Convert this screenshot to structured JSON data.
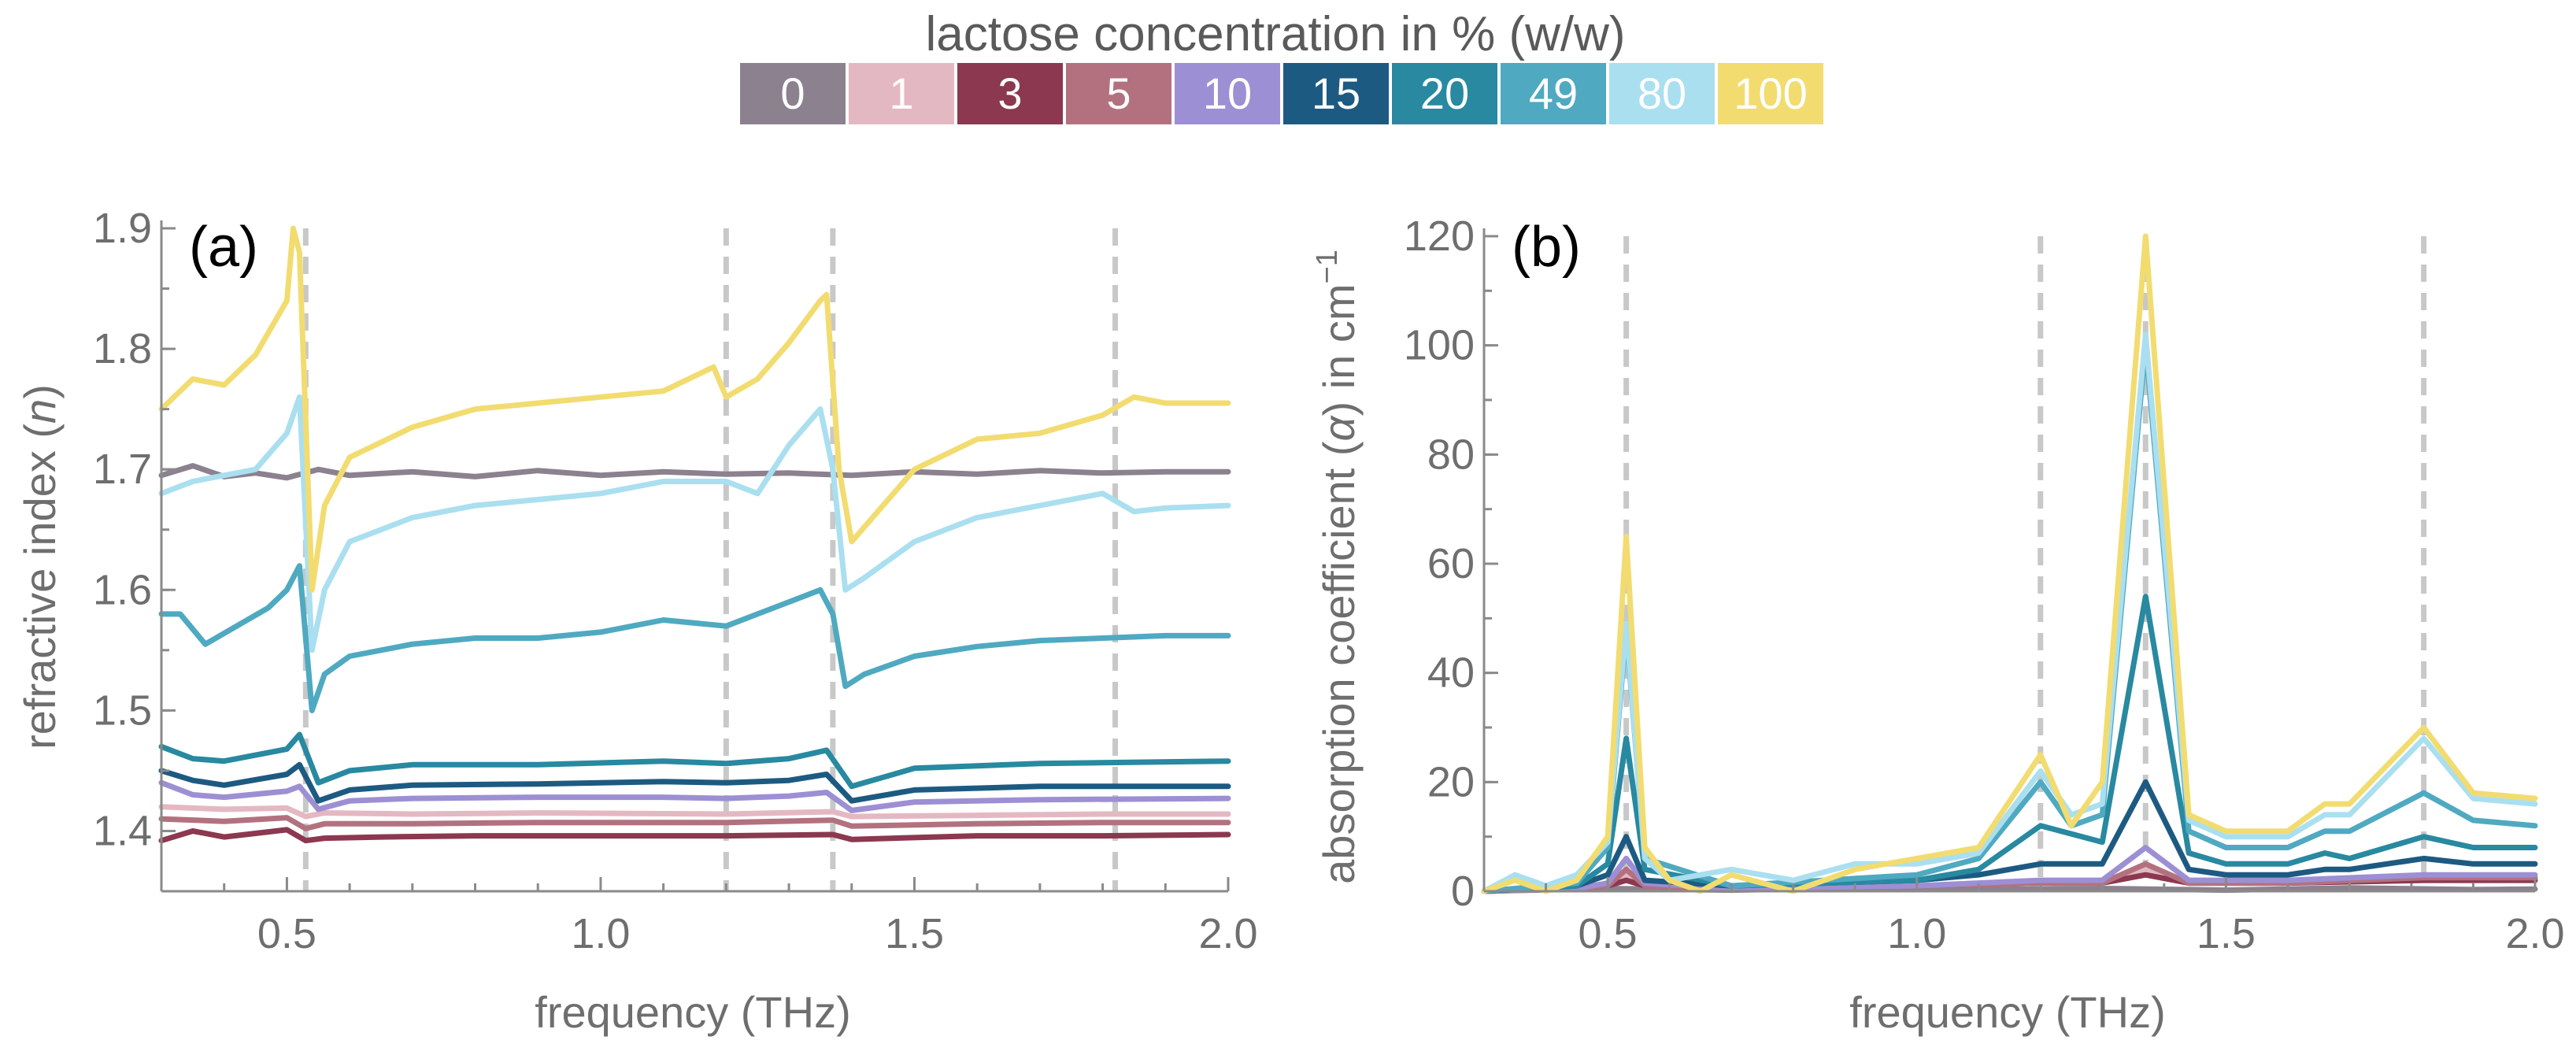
{
  "legend": {
    "title": "lactose concentration in % (w/w)",
    "entries": [
      {
        "label": "0",
        "color": "#8c818f"
      },
      {
        "label": "1",
        "color": "#e4b8c2"
      },
      {
        "label": "3",
        "color": "#8b3850"
      },
      {
        "label": "5",
        "color": "#b3717f"
      },
      {
        "label": "10",
        "color": "#9d8fd3"
      },
      {
        "label": "15",
        "color": "#1d5a82"
      },
      {
        "label": "20",
        "color": "#2889a0"
      },
      {
        "label": "49",
        "color": "#4fa9c1"
      },
      {
        "label": "80",
        "color": "#aadff0"
      },
      {
        "label": "100",
        "color": "#f2dc70"
      }
    ]
  },
  "chart_data": [
    {
      "type": "line",
      "panel_label": "(a)",
      "title": "",
      "xlabel": "frequency (THz)",
      "ylabel_prefix": "refractive index (",
      "ylabel_symbol": "n",
      "ylabel_suffix": ")",
      "xlim": [
        0.3,
        2.0
      ],
      "ylim": [
        1.35,
        1.9
      ],
      "xticks": [
        {
          "v": 0.5,
          "label": "0.5"
        },
        {
          "v": 1.0,
          "label": "1.0"
        },
        {
          "v": 1.5,
          "label": "1.5"
        },
        {
          "v": 2.0,
          "label": "2.0"
        }
      ],
      "yticks": [
        {
          "v": 1.4,
          "label": "1.4"
        },
        {
          "v": 1.5,
          "label": "1.5"
        },
        {
          "v": 1.6,
          "label": "1.6"
        },
        {
          "v": 1.7,
          "label": "1.7"
        },
        {
          "v": 1.8,
          "label": "1.8"
        },
        {
          "v": 1.9,
          "label": "1.9"
        }
      ],
      "vlines": [
        0.53,
        1.2,
        1.37,
        1.82
      ],
      "series": [
        {
          "name": "0",
          "color": "#8c818f",
          "x": [
            0.3,
            0.35,
            0.4,
            0.45,
            0.5,
            0.55,
            0.6,
            0.7,
            0.8,
            0.9,
            1.0,
            1.1,
            1.2,
            1.3,
            1.4,
            1.5,
            1.6,
            1.7,
            1.8,
            1.9,
            2.0
          ],
          "y": [
            1.695,
            1.703,
            1.694,
            1.697,
            1.693,
            1.7,
            1.695,
            1.698,
            1.694,
            1.699,
            1.695,
            1.698,
            1.696,
            1.697,
            1.695,
            1.698,
            1.696,
            1.699,
            1.697,
            1.698,
            1.698
          ]
        },
        {
          "name": "1",
          "color": "#e4b8c2",
          "x": [
            0.3,
            0.4,
            0.5,
            0.53,
            0.56,
            0.7,
            0.9,
            1.2,
            1.37,
            1.4,
            1.6,
            1.8,
            2.0
          ],
          "y": [
            1.42,
            1.418,
            1.419,
            1.412,
            1.415,
            1.414,
            1.415,
            1.414,
            1.416,
            1.412,
            1.413,
            1.414,
            1.414
          ]
        },
        {
          "name": "3",
          "color": "#8b3850",
          "x": [
            0.3,
            0.35,
            0.4,
            0.5,
            0.53,
            0.56,
            0.65,
            0.8,
            1.0,
            1.2,
            1.37,
            1.4,
            1.6,
            1.8,
            2.0
          ],
          "y": [
            1.392,
            1.4,
            1.395,
            1.401,
            1.392,
            1.394,
            1.395,
            1.396,
            1.396,
            1.396,
            1.397,
            1.393,
            1.396,
            1.396,
            1.397
          ]
        },
        {
          "name": "5",
          "color": "#b3717f",
          "x": [
            0.3,
            0.4,
            0.5,
            0.53,
            0.56,
            0.7,
            0.9,
            1.2,
            1.37,
            1.4,
            1.6,
            1.8,
            2.0
          ],
          "y": [
            1.41,
            1.408,
            1.411,
            1.402,
            1.406,
            1.406,
            1.407,
            1.407,
            1.409,
            1.404,
            1.406,
            1.407,
            1.407
          ]
        },
        {
          "name": "10",
          "color": "#9d8fd3",
          "x": [
            0.3,
            0.35,
            0.4,
            0.5,
            0.52,
            0.55,
            0.6,
            0.7,
            0.9,
            1.1,
            1.2,
            1.3,
            1.36,
            1.4,
            1.5,
            1.7,
            2.0
          ],
          "y": [
            1.44,
            1.43,
            1.428,
            1.433,
            1.437,
            1.418,
            1.425,
            1.427,
            1.428,
            1.428,
            1.427,
            1.429,
            1.432,
            1.417,
            1.424,
            1.426,
            1.427
          ]
        },
        {
          "name": "15",
          "color": "#1d5a82",
          "x": [
            0.3,
            0.35,
            0.4,
            0.5,
            0.52,
            0.55,
            0.6,
            0.7,
            0.9,
            1.1,
            1.2,
            1.3,
            1.36,
            1.4,
            1.5,
            1.7,
            2.0
          ],
          "y": [
            1.45,
            1.442,
            1.438,
            1.447,
            1.455,
            1.425,
            1.434,
            1.438,
            1.439,
            1.441,
            1.44,
            1.442,
            1.447,
            1.425,
            1.434,
            1.437,
            1.437
          ]
        },
        {
          "name": "20",
          "color": "#2889a0",
          "x": [
            0.3,
            0.35,
            0.4,
            0.5,
            0.52,
            0.55,
            0.6,
            0.7,
            0.9,
            1.1,
            1.2,
            1.3,
            1.36,
            1.4,
            1.5,
            1.7,
            2.0
          ],
          "y": [
            1.47,
            1.46,
            1.458,
            1.468,
            1.48,
            1.44,
            1.45,
            1.455,
            1.455,
            1.458,
            1.456,
            1.46,
            1.467,
            1.437,
            1.452,
            1.456,
            1.458
          ]
        },
        {
          "name": "49",
          "color": "#4fa9c1",
          "x": [
            0.3,
            0.33,
            0.37,
            0.42,
            0.47,
            0.5,
            0.52,
            0.54,
            0.56,
            0.6,
            0.7,
            0.8,
            0.9,
            1.0,
            1.1,
            1.2,
            1.25,
            1.3,
            1.35,
            1.37,
            1.39,
            1.42,
            1.5,
            1.6,
            1.7,
            1.8,
            1.9,
            2.0
          ],
          "y": [
            1.58,
            1.58,
            1.555,
            1.57,
            1.585,
            1.6,
            1.62,
            1.5,
            1.53,
            1.545,
            1.555,
            1.56,
            1.56,
            1.565,
            1.575,
            1.57,
            1.58,
            1.59,
            1.6,
            1.58,
            1.52,
            1.53,
            1.545,
            1.553,
            1.558,
            1.56,
            1.562,
            1.562
          ]
        },
        {
          "name": "80",
          "color": "#aadff0",
          "x": [
            0.3,
            0.35,
            0.4,
            0.45,
            0.5,
            0.52,
            0.54,
            0.56,
            0.6,
            0.7,
            0.8,
            0.9,
            1.0,
            1.1,
            1.2,
            1.25,
            1.3,
            1.35,
            1.37,
            1.39,
            1.42,
            1.5,
            1.6,
            1.7,
            1.8,
            1.85,
            1.9,
            2.0
          ],
          "y": [
            1.68,
            1.69,
            1.695,
            1.7,
            1.73,
            1.76,
            1.55,
            1.6,
            1.64,
            1.66,
            1.67,
            1.675,
            1.68,
            1.69,
            1.69,
            1.68,
            1.72,
            1.75,
            1.7,
            1.6,
            1.61,
            1.64,
            1.66,
            1.67,
            1.68,
            1.665,
            1.668,
            1.67
          ]
        },
        {
          "name": "100",
          "color": "#f2dc70",
          "x": [
            0.3,
            0.35,
            0.4,
            0.45,
            0.5,
            0.51,
            0.52,
            0.54,
            0.56,
            0.6,
            0.7,
            0.8,
            0.9,
            1.0,
            1.1,
            1.18,
            1.2,
            1.25,
            1.3,
            1.35,
            1.36,
            1.38,
            1.4,
            1.45,
            1.5,
            1.6,
            1.7,
            1.8,
            1.85,
            1.9,
            2.0
          ],
          "y": [
            1.75,
            1.775,
            1.77,
            1.795,
            1.84,
            1.9,
            1.88,
            1.6,
            1.67,
            1.71,
            1.735,
            1.75,
            1.755,
            1.76,
            1.765,
            1.785,
            1.76,
            1.775,
            1.805,
            1.84,
            1.845,
            1.7,
            1.64,
            1.67,
            1.7,
            1.725,
            1.73,
            1.745,
            1.76,
            1.755,
            1.755
          ]
        }
      ]
    },
    {
      "type": "line",
      "panel_label": "(b)",
      "title": "",
      "xlabel": "frequency (THz)",
      "ylabel_prefix": "absorption coefficient (",
      "ylabel_symbol": "α",
      "ylabel_suffix": ") in cm",
      "ylabel_sup": "−1",
      "xlim": [
        0.3,
        2.0
      ],
      "ylim": [
        0,
        120
      ],
      "xticks": [
        {
          "v": 0.5,
          "label": "0.5"
        },
        {
          "v": 1.0,
          "label": "1.0"
        },
        {
          "v": 1.5,
          "label": "1.5"
        },
        {
          "v": 2.0,
          "label": "2.0"
        }
      ],
      "yticks": [
        {
          "v": 0,
          "label": "0"
        },
        {
          "v": 20,
          "label": "20"
        },
        {
          "v": 40,
          "label": "40"
        },
        {
          "v": 60,
          "label": "60"
        },
        {
          "v": 80,
          "label": "80"
        },
        {
          "v": 100,
          "label": "100"
        },
        {
          "v": 120,
          "label": "120"
        }
      ],
      "vlines": [
        0.53,
        1.2,
        1.37,
        1.82
      ],
      "series": [
        {
          "name": "0",
          "color": "#8c818f",
          "x": [
            0.3,
            0.5,
            0.7,
            0.9,
            1.1,
            1.3,
            1.5,
            1.7,
            1.9,
            2.0
          ],
          "y": [
            0,
            0.5,
            0.2,
            0.6,
            0.3,
            0.5,
            0.2,
            0.6,
            0.3,
            0.4
          ]
        },
        {
          "name": "1",
          "color": "#e4b8c2",
          "x": [
            0.3,
            0.45,
            0.5,
            0.53,
            0.56,
            0.7,
            1.0,
            1.2,
            1.3,
            1.37,
            1.44,
            1.6,
            1.82,
            2.0
          ],
          "y": [
            0,
            0.5,
            1,
            3,
            1,
            0.5,
            1,
            1.5,
            1.5,
            4,
            1.5,
            1.5,
            2,
            2
          ]
        },
        {
          "name": "3",
          "color": "#8b3850",
          "x": [
            0.3,
            0.45,
            0.5,
            0.53,
            0.56,
            0.7,
            1.0,
            1.2,
            1.3,
            1.37,
            1.44,
            1.6,
            1.82,
            2.0
          ],
          "y": [
            0,
            0.5,
            1,
            2,
            1,
            0.5,
            1,
            1.5,
            1.5,
            3,
            1.5,
            1.5,
            2,
            2
          ]
        },
        {
          "name": "5",
          "color": "#b3717f",
          "x": [
            0.3,
            0.45,
            0.5,
            0.53,
            0.56,
            0.7,
            1.0,
            1.2,
            1.3,
            1.37,
            1.44,
            1.6,
            1.82,
            2.0
          ],
          "y": [
            0,
            0.5,
            1,
            4,
            1,
            0.5,
            1,
            1.5,
            1.5,
            5,
            1.5,
            1.5,
            2.5,
            2.5
          ]
        },
        {
          "name": "10",
          "color": "#9d8fd3",
          "x": [
            0.3,
            0.45,
            0.5,
            0.53,
            0.56,
            0.7,
            1.0,
            1.2,
            1.3,
            1.37,
            1.44,
            1.6,
            1.82,
            2.0
          ],
          "y": [
            0,
            0.5,
            1.5,
            6,
            1.5,
            0.5,
            1,
            2,
            2,
            8,
            2,
            2,
            3,
            3
          ]
        },
        {
          "name": "15",
          "color": "#1d5a82",
          "x": [
            0.3,
            0.45,
            0.5,
            0.53,
            0.56,
            0.7,
            1.0,
            1.1,
            1.2,
            1.3,
            1.37,
            1.44,
            1.5,
            1.6,
            1.66,
            1.7,
            1.82,
            1.9,
            2.0
          ],
          "y": [
            0,
            1,
            3,
            10,
            2,
            1,
            2,
            3,
            5,
            5,
            20,
            4,
            3,
            3,
            4,
            4,
            6,
            5,
            5
          ]
        },
        {
          "name": "20",
          "color": "#2889a0",
          "x": [
            0.3,
            0.45,
            0.5,
            0.53,
            0.56,
            0.7,
            1.0,
            1.1,
            1.2,
            1.3,
            1.37,
            1.44,
            1.5,
            1.6,
            1.66,
            1.7,
            1.82,
            1.9,
            2.0
          ],
          "y": [
            0,
            1,
            5,
            28,
            4,
            1,
            2,
            4,
            12,
            9,
            54,
            7,
            5,
            5,
            7,
            6,
            10,
            8,
            8
          ]
        },
        {
          "name": "49",
          "color": "#4fa9c1",
          "x": [
            0.3,
            0.45,
            0.5,
            0.53,
            0.56,
            0.7,
            1.0,
            1.1,
            1.2,
            1.25,
            1.3,
            1.37,
            1.44,
            1.5,
            1.6,
            1.66,
            1.7,
            1.82,
            1.9,
            2.0
          ],
          "y": [
            0,
            1.5,
            8,
            48,
            6,
            1,
            3,
            6,
            20,
            12,
            14,
            100,
            11,
            8,
            8,
            11,
            11,
            18,
            13,
            12
          ]
        },
        {
          "name": "80",
          "color": "#aadff0",
          "x": [
            0.3,
            0.35,
            0.4,
            0.45,
            0.5,
            0.53,
            0.56,
            0.6,
            0.7,
            0.8,
            0.9,
            1.0,
            1.1,
            1.2,
            1.25,
            1.3,
            1.37,
            1.44,
            1.5,
            1.6,
            1.66,
            1.7,
            1.82,
            1.9,
            2.0
          ],
          "y": [
            0,
            3,
            1,
            3,
            9,
            49,
            6,
            2,
            4,
            2,
            5,
            5,
            7,
            22,
            14,
            16,
            102,
            13,
            10,
            10,
            14,
            14,
            28,
            17,
            16
          ]
        },
        {
          "name": "100",
          "color": "#f2dc70",
          "x": [
            0.3,
            0.35,
            0.4,
            0.45,
            0.5,
            0.53,
            0.56,
            0.6,
            0.65,
            0.7,
            0.8,
            0.9,
            1.0,
            1.1,
            1.2,
            1.25,
            1.3,
            1.37,
            1.44,
            1.5,
            1.6,
            1.66,
            1.7,
            1.82,
            1.9,
            2.0
          ],
          "y": [
            0,
            2,
            0,
            2,
            10,
            65,
            8,
            2,
            0,
            3,
            0,
            4,
            6,
            8,
            25,
            12,
            20,
            120,
            14,
            11,
            11,
            16,
            16,
            30,
            18,
            17
          ]
        }
      ]
    }
  ]
}
